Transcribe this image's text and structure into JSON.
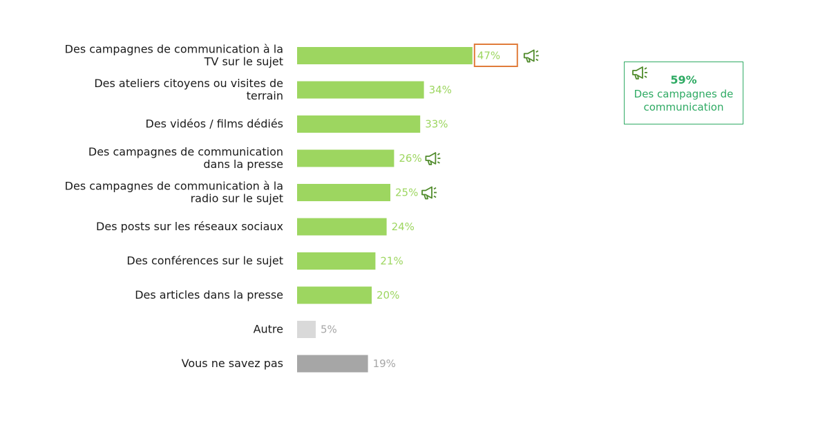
{
  "chart_data": {
    "type": "bar",
    "orientation": "horizontal",
    "categories": [
      [
        "Des campagnes de communication à la",
        "TV sur le sujet"
      ],
      [
        "Des ateliers citoyens ou visites de",
        "terrain"
      ],
      [
        "Des vidéos / films dédiés"
      ],
      [
        "Des campagnes de communication",
        "dans la presse"
      ],
      [
        "Des campagnes de communication à la",
        "radio sur le sujet"
      ],
      [
        "Des posts sur les réseaux sociaux"
      ],
      [
        "Des conférences sur le sujet"
      ],
      [
        "Des articles dans la presse"
      ],
      [
        "Autre"
      ],
      [
        "Vous ne savez pas"
      ]
    ],
    "values": [
      47,
      34,
      33,
      26,
      25,
      24,
      21,
      20,
      5,
      19
    ],
    "value_labels": [
      "47%",
      "34%",
      "33%",
      "26%",
      "25%",
      "24%",
      "21%",
      "20%",
      "5%",
      "19%"
    ],
    "bar_colors": [
      "#9dd660",
      "#9dd660",
      "#9dd660",
      "#9dd660",
      "#9dd660",
      "#9dd660",
      "#9dd660",
      "#9dd660",
      "#d9d9d9",
      "#a6a6a6"
    ],
    "label_colors": [
      "#9dd660",
      "#9dd660",
      "#9dd660",
      "#9dd660",
      "#9dd660",
      "#9dd660",
      "#9dd660",
      "#9dd660",
      "#a6a6a6",
      "#a6a6a6"
    ],
    "megaphone_markers": [
      true,
      false,
      false,
      true,
      true,
      false,
      false,
      false,
      false,
      false
    ],
    "highlight_index": 0,
    "highlight_color": "#e07b39",
    "xlim": [
      0,
      100
    ],
    "grid": false
  },
  "callout": {
    "icon": "megaphone-icon",
    "value": "59%",
    "text_lines": [
      "Des campagnes de",
      "communication"
    ],
    "color": "#2eaa63"
  },
  "colors": {
    "icon_green": "#4f8a2a"
  }
}
